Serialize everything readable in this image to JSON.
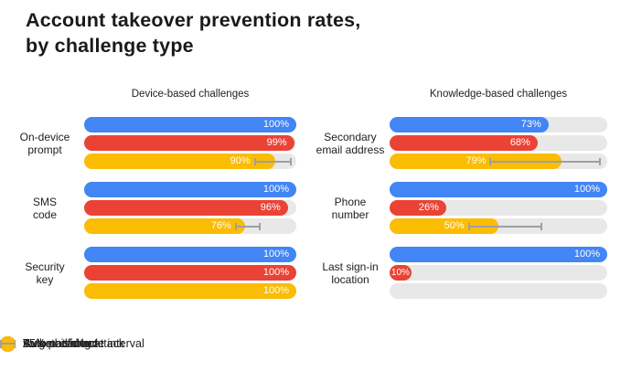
{
  "title": {
    "line1": "Account takeover prevention rates,",
    "line2": "by challenge type"
  },
  "colors": {
    "automated_bot": "#4285F4",
    "bulk_phishing": "#EA4335",
    "targeted_attack": "#FBBC04",
    "track": "#E8E8E8",
    "ci": "#9AA0A6",
    "text": "#202124",
    "background": "#FFFFFF"
  },
  "series_meta": [
    {
      "name": "Automated bot",
      "key": "automated-bot",
      "color_key": "automated_bot"
    },
    {
      "name": "Bulk phishing attack",
      "key": "bulk-phishing-attack",
      "color_key": "bulk_phishing"
    },
    {
      "name": "Targeted attack",
      "key": "targeted-attack",
      "color_key": "targeted_attack"
    }
  ],
  "panels": [
    {
      "title": "Device-based challenges",
      "groups": [
        {
          "label": "On-device prompt",
          "label_lines": [
            "On-device",
            "prompt"
          ],
          "values": [
            100,
            99,
            90
          ],
          "value_labels": [
            "100%",
            "99%",
            "90%"
          ],
          "ci": [
            null,
            null,
            [
              80,
              98
            ]
          ]
        },
        {
          "label": "SMS code",
          "label_lines": [
            "SMS",
            "code"
          ],
          "values": [
            100,
            96,
            76
          ],
          "value_labels": [
            "100%",
            "96%",
            "76%"
          ],
          "ci": [
            null,
            null,
            [
              71,
              83
            ]
          ]
        },
        {
          "label": "Security key",
          "label_lines": [
            "Security",
            "key"
          ],
          "values": [
            100,
            100,
            100
          ],
          "value_labels": [
            "100%",
            "100%",
            "100%"
          ],
          "ci": [
            null,
            null,
            null
          ]
        }
      ]
    },
    {
      "title": "Knowledge-based challenges",
      "groups": [
        {
          "label": "Secondary email address",
          "label_lines": [
            "Secondary",
            "email address"
          ],
          "values": [
            73,
            68,
            79
          ],
          "value_labels": [
            "73%",
            "68%",
            "79%"
          ],
          "ci": [
            null,
            null,
            [
              46,
              97
            ]
          ]
        },
        {
          "label": "Phone number",
          "label_lines": [
            "Phone",
            "number"
          ],
          "values": [
            100,
            26,
            50
          ],
          "value_labels": [
            "100%",
            "26%",
            "50%"
          ],
          "ci": [
            null,
            null,
            [
              36,
              70
            ]
          ]
        },
        {
          "label": "Last sign-in location",
          "label_lines": [
            "Last sign-in",
            "location"
          ],
          "values": [
            100,
            10,
            null
          ],
          "value_labels": [
            "100%",
            "10%",
            null
          ],
          "ci": [
            null,
            null,
            null
          ]
        }
      ]
    }
  ],
  "legend": [
    {
      "label": "Automated bot",
      "type": "dot",
      "color_key": "automated_bot"
    },
    {
      "label": "Bulk phishing attack",
      "type": "dot",
      "color_key": "bulk_phishing"
    },
    {
      "label": "Targeted attack",
      "type": "dot",
      "color_key": "targeted_attack"
    },
    {
      "label": "95% confidence interval",
      "type": "ci"
    }
  ],
  "chart_data": [
    {
      "type": "bar",
      "orientation": "horizontal",
      "title": "Device-based challenges",
      "categories": [
        "On-device prompt",
        "SMS code",
        "Security key"
      ],
      "series": [
        {
          "name": "Automated bot",
          "values": [
            100,
            100,
            100
          ]
        },
        {
          "name": "Bulk phishing attack",
          "values": [
            99,
            96,
            100
          ]
        },
        {
          "name": "Targeted attack",
          "values": [
            90,
            76,
            100
          ],
          "ci_95_estimated": [
            [
              80,
              98
            ],
            [
              71,
              83
            ],
            null
          ]
        }
      ],
      "unit": "%",
      "xlim": [
        0,
        100
      ],
      "grid": false,
      "legend_position": "bottom"
    },
    {
      "type": "bar",
      "orientation": "horizontal",
      "title": "Knowledge-based challenges",
      "categories": [
        "Secondary email address",
        "Phone number",
        "Last sign-in location"
      ],
      "series": [
        {
          "name": "Automated bot",
          "values": [
            73,
            100,
            100
          ]
        },
        {
          "name": "Bulk phishing attack",
          "values": [
            68,
            26,
            10
          ]
        },
        {
          "name": "Targeted attack",
          "values": [
            79,
            50,
            null
          ],
          "ci_95_estimated": [
            [
              46,
              97
            ],
            [
              36,
              70
            ],
            null
          ]
        }
      ],
      "unit": "%",
      "xlim": [
        0,
        100
      ],
      "grid": false,
      "legend_position": "bottom"
    }
  ]
}
